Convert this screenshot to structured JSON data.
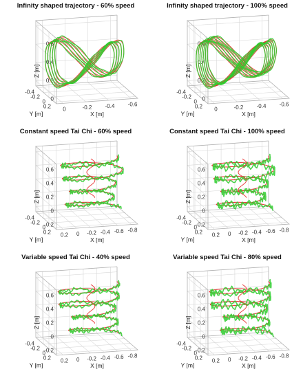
{
  "figure": {
    "colors": {
      "reference": "#e83030",
      "measured": "#2ecc2e",
      "grid": "#d8d8d8",
      "axis": "#555555"
    },
    "panels": [
      {
        "title": "Infinity shaped trajectory - 60% speed",
        "shape": "infinity",
        "variant": "loose",
        "xlabel": "X [m]",
        "ylabel": "Y [m]",
        "zlabel": "Z [m]",
        "zticks": [
          "0.6",
          "0.4",
          "0.2",
          "0"
        ],
        "yticks": [
          "-0.4",
          "-0.2",
          "0",
          "0.2"
        ],
        "xticks": [
          "0",
          "-0.2",
          "-0.4",
          "-0.6"
        ]
      },
      {
        "title": "Infinity shaped trajectory - 100% speed",
        "shape": "infinity",
        "variant": "dense",
        "xlabel": "X [m]",
        "ylabel": "Y [m]",
        "zlabel": "Z [m]",
        "zticks": [
          "0.6",
          "0.4",
          "0.2",
          "0"
        ],
        "yticks": [
          "-0.4",
          "-0.2",
          "0",
          "0.2"
        ],
        "xticks": [
          "0",
          "-0.2",
          "-0.4",
          "-0.6"
        ]
      },
      {
        "title": "Constant speed Tai Chi - 60% speed",
        "shape": "spiral",
        "variant": "constant",
        "xlabel": "X [m]",
        "ylabel": "Y [m]",
        "zlabel": "Z [m]",
        "zticks": [
          "0.6",
          "0.4",
          "0.2",
          "0",
          "-0.2"
        ],
        "yticks": [
          "-0.4",
          "-0.2",
          "0",
          "0.2"
        ],
        "xticks": [
          "0.2",
          "0",
          "-0.2",
          "-0.4",
          "-0.6",
          "-0.8"
        ]
      },
      {
        "title": "Constant speed Tai Chi - 100% speed",
        "shape": "spiral",
        "variant": "constant-fast",
        "xlabel": "X [m]",
        "ylabel": "Y [m]",
        "zlabel": "Z [m]",
        "zticks": [
          "0.6",
          "0.4",
          "0.2",
          "0",
          "-0.2"
        ],
        "yticks": [
          "-0.4",
          "-0.2",
          "0",
          "0.2"
        ],
        "xticks": [
          "0.2",
          "0",
          "-0.2",
          "-0.4",
          "-0.6",
          "-0.8"
        ]
      },
      {
        "title": "Variable speed Tai Chi - 40% speed",
        "shape": "spiral",
        "variant": "variable",
        "xlabel": "X [m]",
        "ylabel": "Y [m]",
        "zlabel": "Z [m]",
        "zticks": [
          "0.6",
          "0.4",
          "0.2",
          "0",
          "-0.2"
        ],
        "yticks": [
          "-0.4",
          "-0.2",
          "0",
          "0.2"
        ],
        "xticks": [
          "0.2",
          "0",
          "-0.2",
          "-0.4",
          "-0.6",
          "-0.8"
        ]
      },
      {
        "title": "Variable speed Tai Chi - 80% speed",
        "shape": "spiral",
        "variant": "variable-fast",
        "xlabel": "X [m]",
        "ylabel": "Y [m]",
        "zlabel": "Z [m]",
        "zticks": [
          "0.6",
          "0.4",
          "0.2",
          "0",
          "-0.2"
        ],
        "yticks": [
          "-0.4",
          "-0.2",
          "0",
          "0.2"
        ],
        "xticks": [
          "0.2",
          "0",
          "-0.2",
          "-0.4",
          "-0.6",
          "-0.8"
        ]
      }
    ]
  },
  "chart_data": [
    {
      "type": "line",
      "title": "Infinity shaped trajectory - 60% speed",
      "xlabel": "X [m]",
      "ylabel": "Y [m]",
      "zlabel": "Z [m]",
      "zlim": [
        0,
        0.6
      ],
      "ylim": [
        -0.4,
        0.2
      ],
      "xlim": [
        -0.6,
        0
      ],
      "grid": true,
      "series": [
        {
          "color": "#e83030",
          "points": "figure-eight loops spanning roughly x -0.6..0, z 0..0.5"
        },
        {
          "color": "#2ecc2e",
          "points": "figure-eight loops tracking the reference"
        }
      ]
    },
    {
      "type": "line",
      "title": "Infinity shaped trajectory - 100% speed",
      "xlabel": "X [m]",
      "ylabel": "Y [m]",
      "zlabel": "Z [m]",
      "zlim": [
        0,
        0.6
      ],
      "ylim": [
        -0.4,
        0.2
      ],
      "xlim": [
        -0.6,
        0
      ],
      "grid": true,
      "series": [
        {
          "color": "#e83030"
        },
        {
          "color": "#2ecc2e"
        }
      ]
    },
    {
      "type": "line",
      "title": "Constant speed Tai Chi - 60% speed",
      "xlabel": "X [m]",
      "ylabel": "Y [m]",
      "zlabel": "Z [m]",
      "zlim": [
        -0.2,
        0.6
      ],
      "ylim": [
        -0.4,
        0.2
      ],
      "xlim": [
        -0.8,
        0.2
      ],
      "grid": true,
      "series": [
        {
          "color": "#e83030"
        },
        {
          "color": "#2ecc2e"
        }
      ]
    },
    {
      "type": "line",
      "title": "Constant speed Tai Chi - 100% speed",
      "xlabel": "X [m]",
      "ylabel": "Y [m]",
      "zlabel": "Z [m]",
      "zlim": [
        -0.2,
        0.6
      ],
      "ylim": [
        -0.4,
        0.2
      ],
      "xlim": [
        -0.8,
        0.2
      ],
      "grid": true,
      "series": [
        {
          "color": "#e83030"
        },
        {
          "color": "#2ecc2e"
        }
      ]
    },
    {
      "type": "line",
      "title": "Variable speed Tai Chi - 40% speed",
      "xlabel": "X [m]",
      "ylabel": "Y [m]",
      "zlabel": "Z [m]",
      "zlim": [
        -0.2,
        0.6
      ],
      "ylim": [
        -0.4,
        0.2
      ],
      "xlim": [
        -0.8,
        0.2
      ],
      "grid": true,
      "series": [
        {
          "color": "#e83030"
        },
        {
          "color": "#2ecc2e"
        }
      ]
    },
    {
      "type": "line",
      "title": "Variable speed Tai Chi - 80% speed",
      "xlabel": "X [m]",
      "ylabel": "Y [m]",
      "zlabel": "Z [m]",
      "zlim": [
        -0.2,
        0.6
      ],
      "ylim": [
        -0.4,
        0.2
      ],
      "xlim": [
        -0.8,
        0.2
      ],
      "grid": true,
      "series": [
        {
          "color": "#e83030"
        },
        {
          "color": "#2ecc2e"
        }
      ]
    }
  ]
}
